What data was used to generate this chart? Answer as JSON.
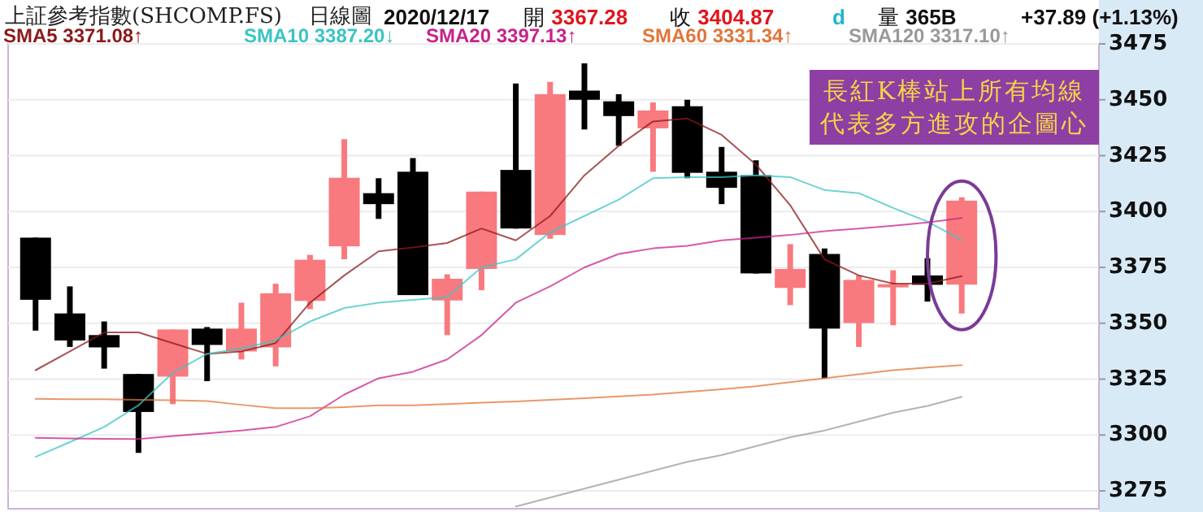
{
  "chart_data": {
    "type": "candlestick",
    "title": "上証參考指數(SHCOMP.FS)",
    "subtitle": "日線圖",
    "annotations": [
      "2020/12/17",
      "開 3367.28",
      "收 3404.87",
      "d",
      "量 365B",
      "+37.89 (+1.13%)",
      "長紅K棒站上所有均線",
      "代表多方進攻的企圖心"
    ],
    "categories": [
      null,
      null,
      null,
      null,
      null,
      null,
      null,
      null,
      null,
      null,
      null,
      null,
      null,
      null,
      null,
      null,
      null,
      null,
      null,
      null,
      null,
      null,
      null,
      null,
      null,
      null,
      null,
      null
    ],
    "ohlc": [
      [
        3388.3,
        3388.3,
        3346.7,
        3360.5
      ],
      [
        3354.4,
        3366.5,
        3339.4,
        3342.3
      ],
      [
        3344.7,
        3350.8,
        3329.7,
        3339.2
      ],
      [
        3327.3,
        3327.3,
        3292.0,
        3310.3
      ],
      [
        3326.1,
        3347.2,
        3313.8,
        3347.2
      ],
      [
        3347.6,
        3348.3,
        3324.1,
        3340.3
      ],
      [
        3337.4,
        3359.2,
        3333.8,
        3347.6
      ],
      [
        3339.2,
        3367.7,
        3330.7,
        3363.4
      ],
      [
        3360.0,
        3380.6,
        3356.3,
        3378.4
      ],
      [
        3384.4,
        3432.4,
        3378.6,
        3415.1
      ],
      [
        3408.2,
        3414.9,
        3396.7,
        3403.3
      ],
      [
        3417.8,
        3423.9,
        3362.6,
        3362.6
      ],
      [
        3360.2,
        3371.9,
        3344.7,
        3369.9
      ],
      [
        3374.3,
        3408.9,
        3364.8,
        3408.9
      ],
      [
        3418.6,
        3457.3,
        3392.4,
        3392.4
      ],
      [
        3389.5,
        3458.0,
        3387.8,
        3452.5
      ],
      [
        3454.1,
        3466.3,
        3436.7,
        3450.0
      ],
      [
        3449.3,
        3452.5,
        3429.4,
        3442.7
      ],
      [
        3437.2,
        3448.8,
        3417.8,
        3445.2
      ],
      [
        3447.1,
        3450.0,
        3414.9,
        3417.3
      ],
      [
        3417.8,
        3428.9,
        3403.3,
        3410.6
      ],
      [
        3416.2,
        3422.9,
        3372.3,
        3372.3
      ],
      [
        3365.8,
        3385.4,
        3358.1,
        3374.3
      ],
      [
        3381.0,
        3383.5,
        3325.4,
        3347.6
      ],
      [
        3350.1,
        3371.4,
        3339.4,
        3369.4
      ],
      [
        3366.5,
        3373.7,
        3349.1,
        3367.5
      ],
      [
        3371.4,
        3379.1,
        3359.7,
        3367.2
      ],
      [
        3367.28,
        3406.4,
        3354.4,
        3404.87
      ]
    ],
    "colors": [
      "#000000",
      "#000000",
      "#000000",
      "#000000",
      "#f87a7e",
      "#000000",
      "#f87a7e",
      "#f87a7e",
      "#f87a7e",
      "#f87a7e",
      "#000000",
      "#000000",
      "#f87a7e",
      "#f87a7e",
      "#000000",
      "#f87a7e",
      "#000000",
      "#000000",
      "#f87a7e",
      "#000000",
      "#000000",
      "#000000",
      "#f87a7e",
      "#000000",
      "#f87a7e",
      "#f87a7e",
      "#000000",
      "#f87a7e"
    ],
    "series": [
      {
        "name": "SMA5 3371.08↑",
        "type": "line",
        "color": "#8b1a1a",
        "values": [
          3329.0,
          3337.4,
          3345.9,
          3345.9,
          3341.1,
          3336.3,
          3337.4,
          3341.1,
          3359.2,
          3371.4,
          3382.2,
          3383.9,
          3385.9,
          3392.4,
          3387.1,
          3398.0,
          3416.2,
          3429.4,
          3440.3,
          3441.6,
          3434.3,
          3421.0,
          3402.8,
          3378.6,
          3371.4,
          3367.7,
          3367.7,
          3371.1
        ]
      },
      {
        "name": "SMA10 3387.20↓",
        "type": "line",
        "color": "#3cc4c4",
        "values": [
          3290.2,
          3296.8,
          3303.6,
          3313.3,
          3327.8,
          3336.3,
          3338.7,
          3342.3,
          3350.8,
          3356.8,
          3359.2,
          3360.5,
          3361.7,
          3375.0,
          3378.6,
          3390.7,
          3398.0,
          3405.3,
          3414.9,
          3415.4,
          3415.4,
          3416.2,
          3415.4,
          3409.6,
          3408.2,
          3401.6,
          3395.5,
          3387.2
        ]
      },
      {
        "name": "SMA20 3397.13↑",
        "type": "line",
        "color": "#c8228c",
        "values": [
          3298.7,
          3298.5,
          3298.3,
          3298.2,
          3299.5,
          3300.7,
          3302.0,
          3303.6,
          3308.4,
          3318.1,
          3325.4,
          3328.3,
          3333.8,
          3344.7,
          3359.2,
          3366.5,
          3375.0,
          3381.0,
          3383.5,
          3384.6,
          3387.1,
          3388.3,
          3389.5,
          3391.2,
          3392.4,
          3393.6,
          3395.1,
          3397.1
        ]
      },
      {
        "name": "SMA60 3331.34↑",
        "type": "line",
        "color": "#e0763a",
        "values": [
          3316.2,
          3316.0,
          3316.0,
          3315.7,
          3315.5,
          3315.2,
          3313.5,
          3312.0,
          3312.0,
          3312.5,
          3313.3,
          3313.3,
          3313.8,
          3314.5,
          3315.0,
          3315.7,
          3316.5,
          3317.3,
          3318.1,
          3319.3,
          3320.5,
          3321.8,
          3323.6,
          3325.4,
          3327.2,
          3329.0,
          3330.2,
          3331.3
        ]
      },
      {
        "name": "SMA120 3317.10↑",
        "type": "line",
        "color": "#999999",
        "values": [
          null,
          null,
          null,
          null,
          null,
          null,
          null,
          null,
          null,
          null,
          null,
          null,
          null,
          null,
          3268,
          3272,
          3276,
          3280,
          3284,
          3288,
          3291,
          3295,
          3299,
          3302,
          3306,
          3310,
          3313,
          3317.1
        ]
      }
    ],
    "ylim": [
      3267,
      3475
    ],
    "yticks": [
      3275,
      3300,
      3325,
      3350,
      3375,
      3400,
      3425,
      3450,
      3475
    ],
    "grid": "y",
    "legend": "top left",
    "tick_labels": "y"
  }
}
